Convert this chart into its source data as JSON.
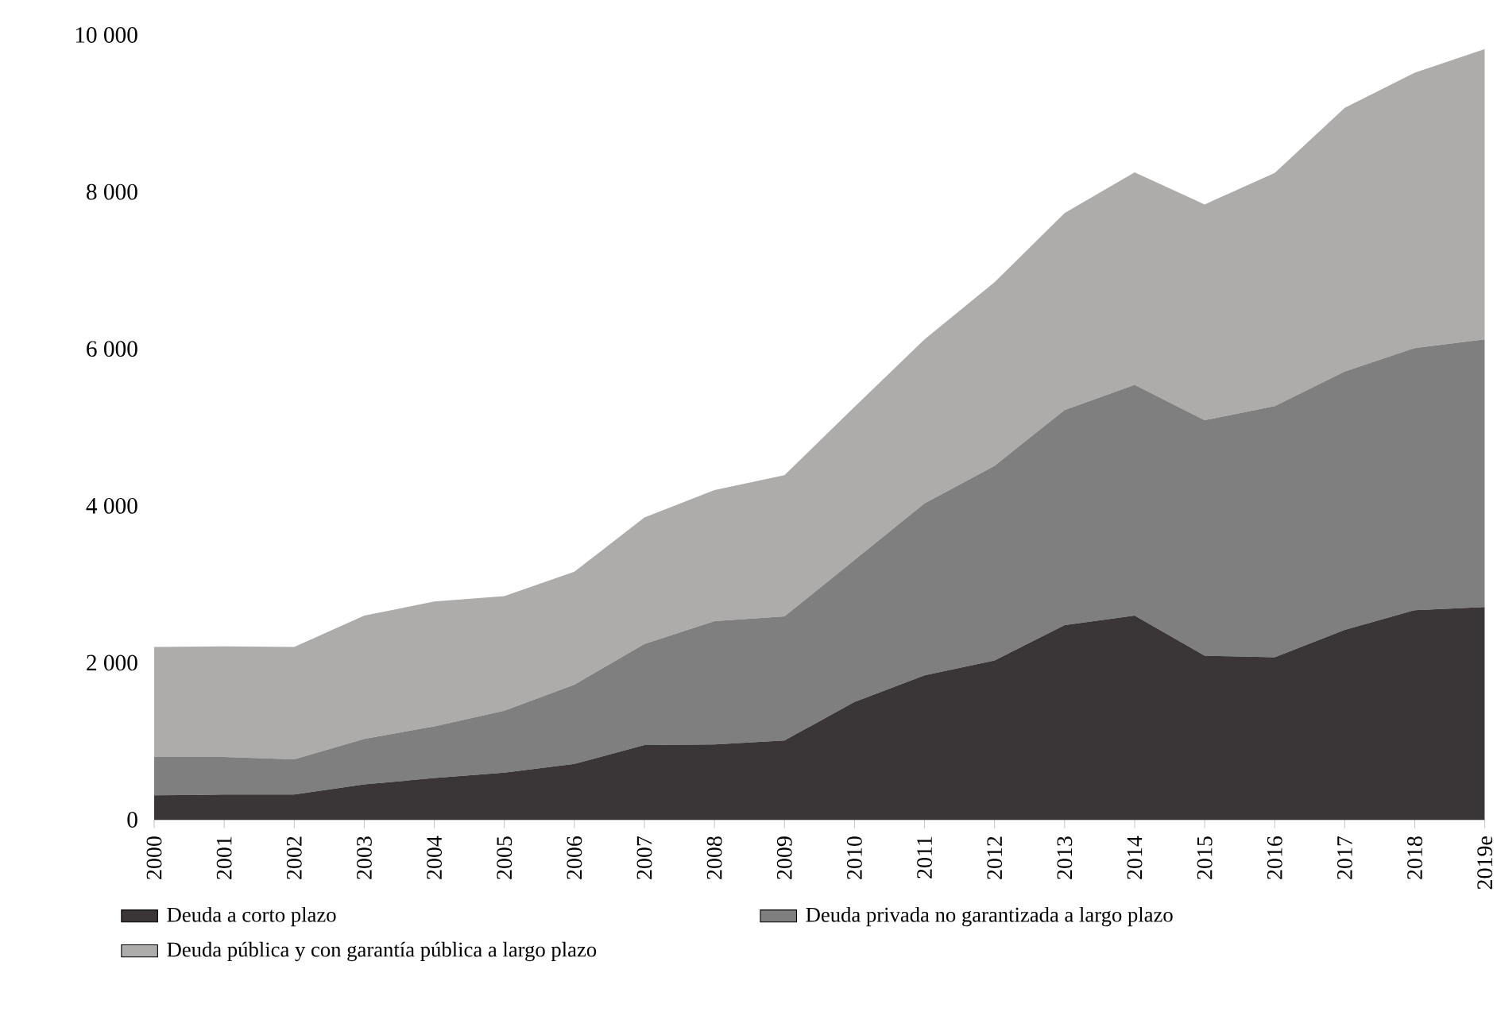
{
  "chart_data": {
    "type": "area",
    "stacked": true,
    "categories": [
      "2000",
      "2001",
      "2002",
      "2003",
      "2004",
      "2005",
      "2006",
      "2007",
      "2008",
      "2009",
      "2010",
      "2011",
      "2012",
      "2013",
      "2014",
      "2015",
      "2016",
      "2017",
      "2018",
      "2019e"
    ],
    "series": [
      {
        "name": "Deuda a corto plazo",
        "color": "#3a3536",
        "values": [
          310,
          320,
          320,
          450,
          530,
          600,
          710,
          950,
          960,
          1010,
          1500,
          1840,
          2030,
          2480,
          2600,
          2090,
          2070,
          2420,
          2670,
          2710
        ]
      },
      {
        "name": "Deuda privada no garantizada a largo plazo",
        "color": "#7f7f7f",
        "values": [
          490,
          480,
          450,
          580,
          660,
          790,
          1010,
          1290,
          1570,
          1580,
          1810,
          2190,
          2480,
          2740,
          2940,
          3000,
          3200,
          3290,
          3340,
          3410
        ]
      },
      {
        "name": "Deuda pública y con garantía pública a largo plazo",
        "color": "#aeabab",
        "values": [
          1400,
          1410,
          1430,
          1570,
          1590,
          1460,
          1440,
          1610,
          1670,
          1800,
          1950,
          2090,
          2340,
          2510,
          2710,
          2750,
          2970,
          3360,
          3510,
          3700
        ]
      }
    ],
    "ylim": [
      0,
      10000
    ],
    "yticks": [
      {
        "value": 0,
        "label": "0"
      },
      {
        "value": 2000,
        "label": "2 000"
      },
      {
        "value": 4000,
        "label": "4 000"
      },
      {
        "value": 6000,
        "label": "6 000"
      },
      {
        "value": 8000,
        "label": "8 000"
      },
      {
        "value": 10000,
        "label": "10 000"
      }
    ],
    "legend": "bottom"
  }
}
